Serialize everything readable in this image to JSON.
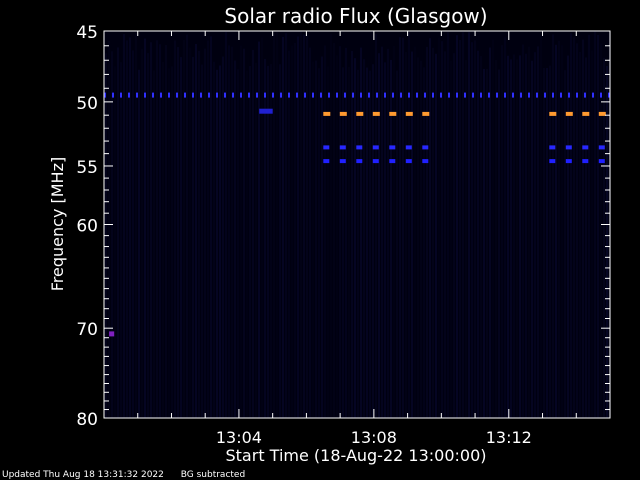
{
  "chart_data": {
    "type": "heatmap",
    "title": "Solar radio Flux (Glasgow)",
    "xlabel": "Start Time (18-Aug-22 13:00:00)",
    "ylabel": "Frequency [MHz]",
    "x_range_minutes": [
      0,
      15
    ],
    "x_ticks": [
      {
        "minute": 4,
        "label": "13:04"
      },
      {
        "minute": 8,
        "label": "13:08"
      },
      {
        "minute": 12,
        "label": "13:12"
      }
    ],
    "y_scale": "log",
    "y_range_mhz": [
      45,
      80
    ],
    "y_ticks": [
      {
        "value": 45,
        "label": "45"
      },
      {
        "value": 50,
        "label": "50"
      },
      {
        "value": 55,
        "label": "55"
      },
      {
        "value": 60,
        "label": "60"
      },
      {
        "value": 70,
        "label": "70"
      },
      {
        "value": 80,
        "label": "80"
      }
    ],
    "background_color": "#000010",
    "features": [
      {
        "name": "interference-band-49.5",
        "freq_mhz": 49.5,
        "minute_start": 0.0,
        "minute_end": 15.0,
        "color": "#3030ff"
      },
      {
        "name": "interference-band-50.9",
        "freq_mhz": 50.9,
        "minute_start": 6.5,
        "minute_end": 9.8,
        "color": "#ff9a30"
      },
      {
        "name": "interference-band-50.9b",
        "freq_mhz": 50.9,
        "minute_start": 13.2,
        "minute_end": 15.0,
        "color": "#ff9a30"
      },
      {
        "name": "interference-band-53.5",
        "freq_mhz": 53.5,
        "minute_start": 6.5,
        "minute_end": 9.8,
        "color": "#2828ff"
      },
      {
        "name": "interference-band-53.5b",
        "freq_mhz": 53.5,
        "minute_start": 13.2,
        "minute_end": 15.0,
        "color": "#2828ff"
      },
      {
        "name": "interference-band-54.6",
        "freq_mhz": 54.6,
        "minute_start": 6.5,
        "minute_end": 9.8,
        "color": "#2020ff"
      },
      {
        "name": "interference-band-54.6b",
        "freq_mhz": 54.6,
        "minute_start": 13.2,
        "minute_end": 15.0,
        "color": "#2020ff"
      },
      {
        "name": "blip-51",
        "freq_mhz": 50.7,
        "minute_start": 4.6,
        "minute_end": 5.0,
        "color": "#2020d0"
      },
      {
        "name": "blip-70.6",
        "freq_mhz": 70.6,
        "minute_start": 0.15,
        "minute_end": 0.3,
        "color": "#8020c0"
      }
    ]
  },
  "footer": {
    "updated": "Updated Thu Aug 18 13:31:32 2022",
    "mode": "BG subtracted"
  }
}
